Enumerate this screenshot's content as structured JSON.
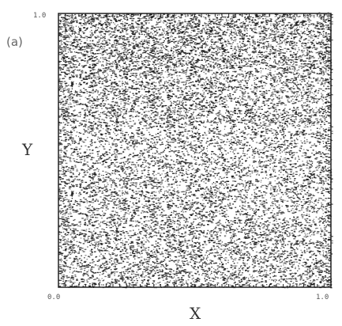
{
  "panel_label": "(a)",
  "chart_data": {
    "type": "scatter",
    "title": "",
    "xlabel": "X",
    "ylabel": "Y",
    "xlim": [
      0.0,
      1.0
    ],
    "ylim": [
      0.0,
      1.0
    ],
    "x_tick_labels": [
      "0.0",
      "1.0"
    ],
    "y_tick_labels": [
      "1.0"
    ],
    "grid": false,
    "legend": "none",
    "colors": {
      "points": "#111111",
      "axes": "#222222"
    },
    "series": [
      {
        "point_count_estimate": 15000,
        "density_note": "points cover the whole unit square; densest near Y=1.0 (top), lighter patches near the center",
        "density_by_y_band": [
          {
            "y_range": [
              0.0,
              0.2
            ],
            "relative_density": 0.72
          },
          {
            "y_range": [
              0.2,
              0.4
            ],
            "relative_density": 0.68
          },
          {
            "y_range": [
              0.4,
              0.6
            ],
            "relative_density": 0.62
          },
          {
            "y_range": [
              0.6,
              0.8
            ],
            "relative_density": 0.78
          },
          {
            "y_range": [
              0.8,
              1.0
            ],
            "relative_density": 0.95
          }
        ]
      }
    ]
  }
}
